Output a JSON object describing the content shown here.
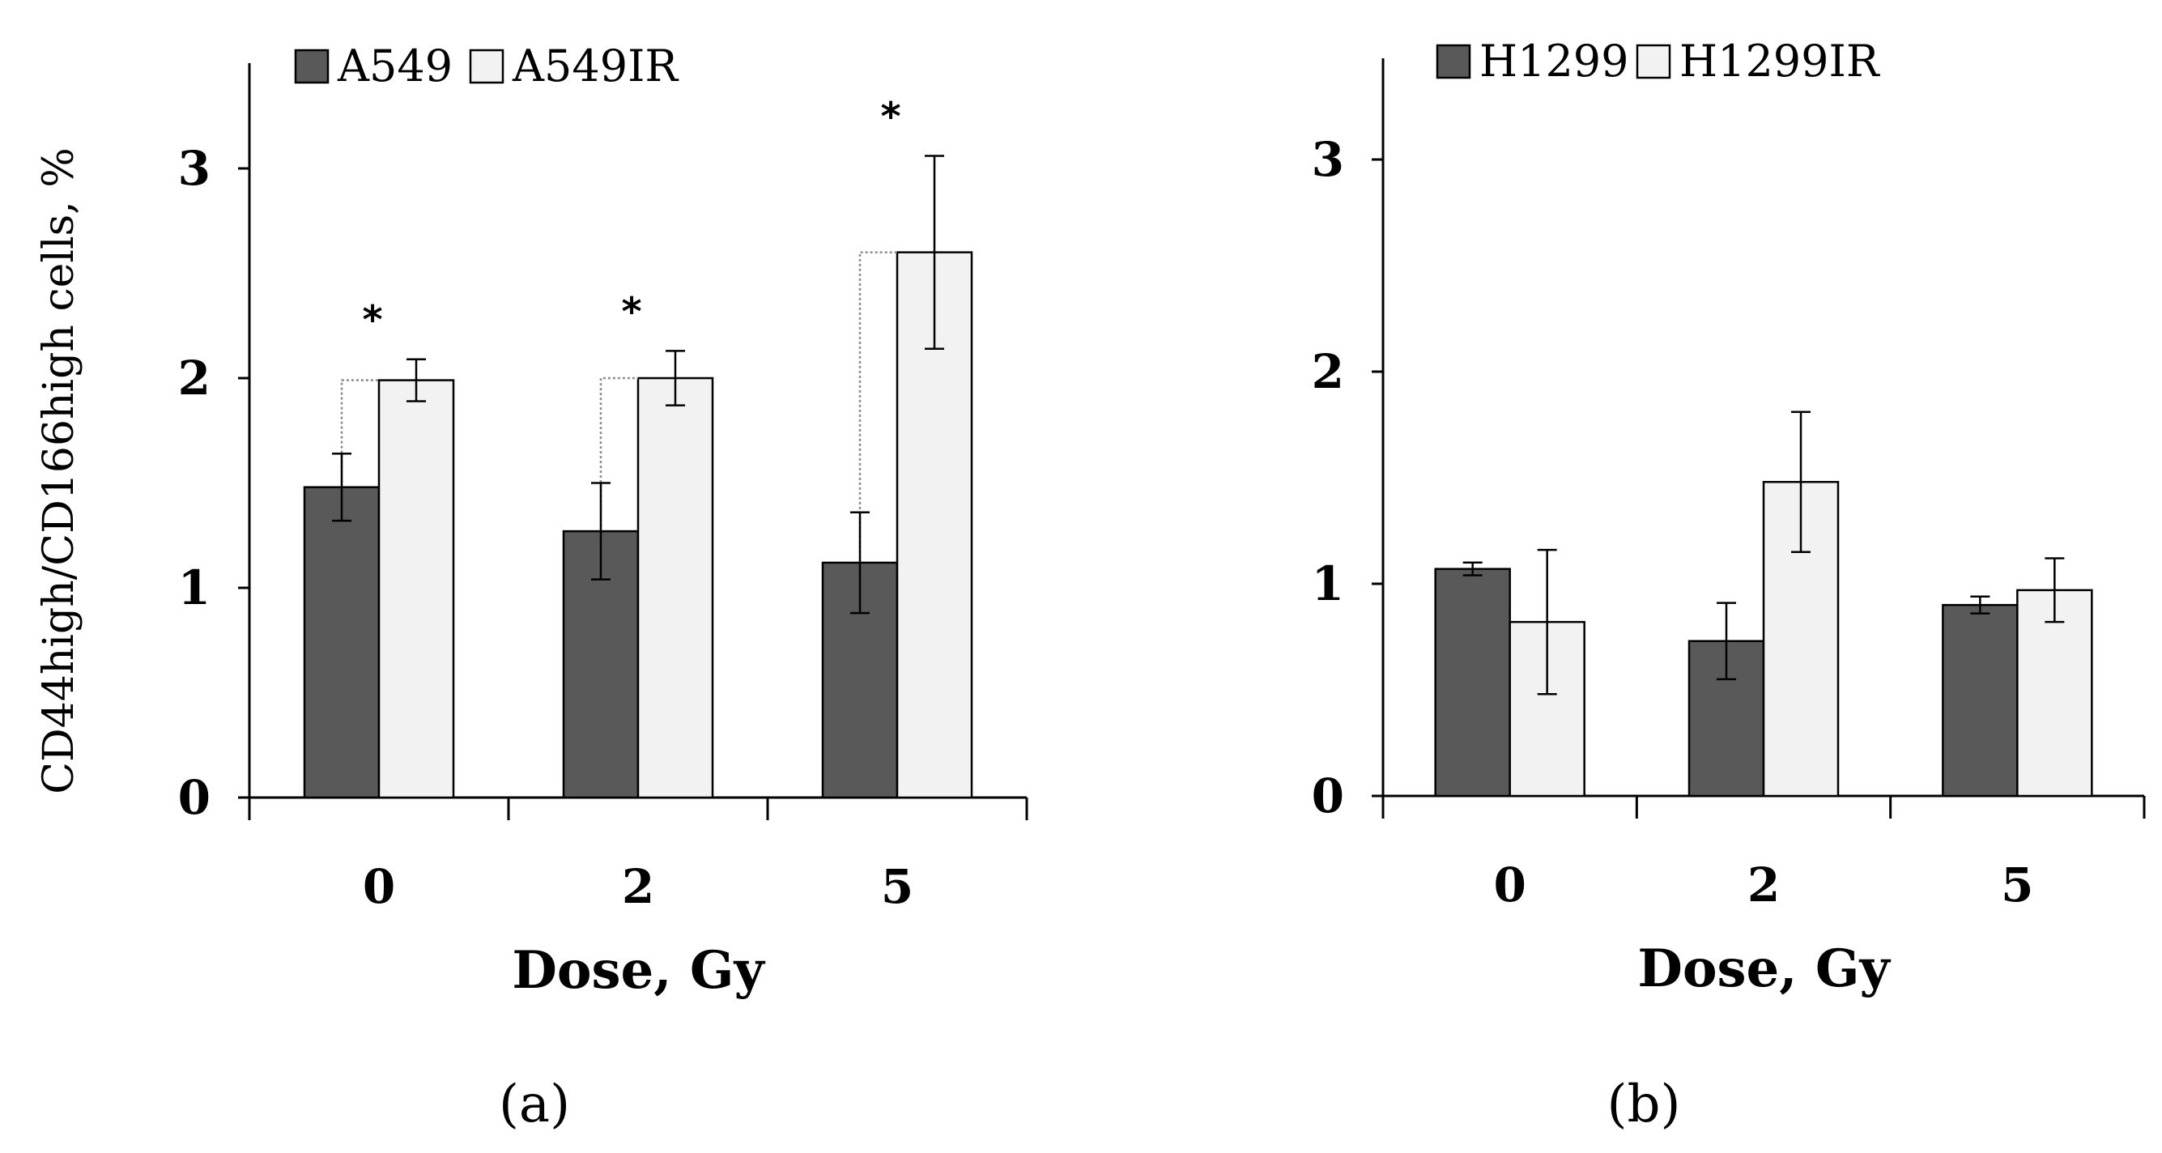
{
  "chart_data": [
    {
      "type": "bar",
      "panel_label": "(a)",
      "categories": [
        "0",
        "2",
        "5"
      ],
      "series": [
        {
          "name": "A549",
          "color": "#595959",
          "values": [
            1.48,
            1.27,
            1.12
          ],
          "errors": [
            0.16,
            0.23,
            0.24
          ]
        },
        {
          "name": "A549IR",
          "color": "#f2f2f2",
          "values": [
            1.99,
            2.0,
            2.6
          ],
          "errors": [
            0.1,
            0.13,
            0.46
          ]
        }
      ],
      "significance": [
        "*",
        "*",
        "*"
      ],
      "xlabel": "Dose, Gy",
      "ylabel": "CD44high/CD166high cells, %",
      "ylim": [
        0,
        3.5
      ],
      "yticks": [
        "0",
        "1",
        "2",
        "3"
      ],
      "legend": "top-left",
      "grid": false
    },
    {
      "type": "bar",
      "panel_label": "(b)",
      "categories": [
        "0",
        "2",
        "5"
      ],
      "series": [
        {
          "name": "H1299",
          "color": "#595959",
          "values": [
            1.07,
            0.73,
            0.9
          ],
          "errors": [
            0.03,
            0.18,
            0.04
          ]
        },
        {
          "name": "H1299IR",
          "color": "#f2f2f2",
          "values": [
            0.82,
            1.48,
            0.97
          ],
          "errors": [
            0.34,
            0.33,
            0.15
          ]
        }
      ],
      "significance": [],
      "xlabel": "Dose, Gy",
      "ylabel": "",
      "ylim": [
        0,
        3.5
      ],
      "yticks": [
        "0",
        "1",
        "2",
        "3"
      ],
      "legend": "top-left",
      "grid": false
    }
  ]
}
